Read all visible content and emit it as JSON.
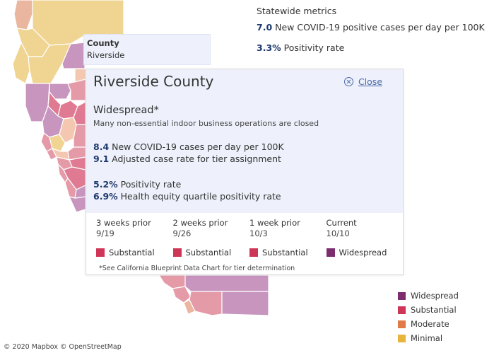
{
  "colors": {
    "widespread": "#7b2d6e",
    "substantial": "#cf3557",
    "moderate": "#e07a47",
    "minimal": "#e6b53a"
  },
  "statewide": {
    "title": "Statewide metrics",
    "cases_value": "7.0",
    "cases_label": "New COVID-19 positive cases per day per 100K",
    "positivity_value": "3.3%",
    "positivity_label": "Positivity rate"
  },
  "hover_tooltip": {
    "heading": "County",
    "value": "Riverside"
  },
  "panel": {
    "title": "Riverside County",
    "close_label": "Close",
    "tier": "Widespread*",
    "tier_description": "Many non-essential indoor business operations are closed",
    "metrics": [
      {
        "value": "8.4",
        "label": "New COVID-19 cases per day per 100K"
      },
      {
        "value": "9.1",
        "label": "Adjusted case rate for tier assignment"
      },
      {
        "value": "5.2%",
        "label": "Positivity rate"
      },
      {
        "value": "6.9%",
        "label": "Health equity quartile positivity rate"
      }
    ],
    "history": [
      {
        "label": "3 weeks prior",
        "date": "9/19",
        "tier": "Substantial",
        "color": "#cf3557"
      },
      {
        "label": "2 weeks prior",
        "date": "9/26",
        "tier": "Substantial",
        "color": "#cf3557"
      },
      {
        "label": "1 week prior",
        "date": "10/3",
        "tier": "Substantial",
        "color": "#cf3557"
      },
      {
        "label": "Current",
        "date": "10/10",
        "tier": "Widespread",
        "color": "#7b2d6e"
      }
    ],
    "footnote": "*See California Blueprint Data Chart for tier determination"
  },
  "legend": [
    {
      "label": "Widespread",
      "color": "#7b2d6e"
    },
    {
      "label": "Substantial",
      "color": "#cf3557"
    },
    {
      "label": "Moderate",
      "color": "#e07a47"
    },
    {
      "label": "Minimal",
      "color": "#e6b53a"
    }
  ],
  "attribution": "© 2020 Mapbox © OpenStreetMap"
}
